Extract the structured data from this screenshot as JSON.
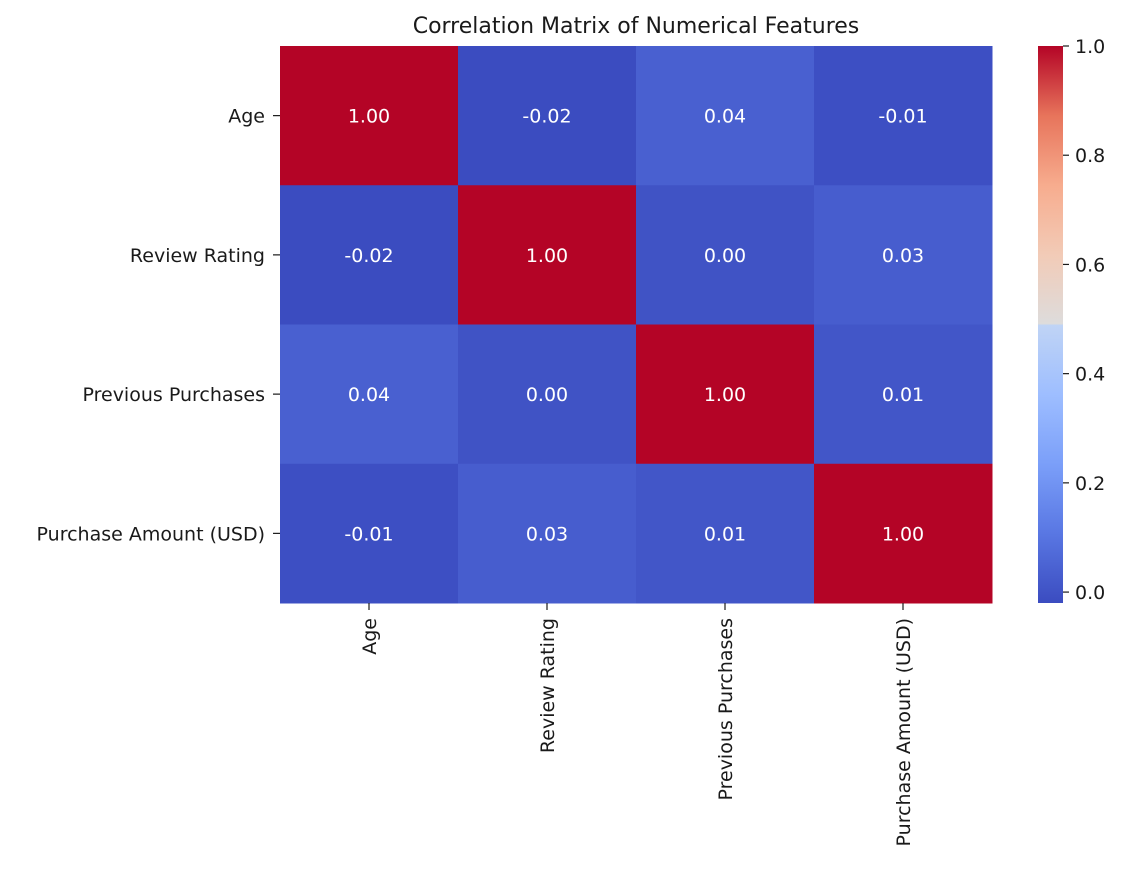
{
  "chart_data": {
    "type": "heatmap",
    "title": "Correlation Matrix of Numerical Features",
    "xlabel": "",
    "ylabel": "",
    "row_labels": [
      "Age",
      "Review Rating",
      "Previous Purchases",
      "Purchase Amount (USD)"
    ],
    "col_labels": [
      "Age",
      "Review Rating",
      "Previous Purchases",
      "Purchase Amount (USD)"
    ],
    "values": [
      [
        1.0,
        -0.02,
        0.04,
        -0.01
      ],
      [
        -0.02,
        1.0,
        0.0,
        0.03
      ],
      [
        0.04,
        0.0,
        1.0,
        0.01
      ],
      [
        -0.01,
        0.03,
        0.01,
        1.0
      ]
    ],
    "annotations": [
      [
        "1.00",
        "-0.02",
        "0.04",
        "-0.01"
      ],
      [
        "-0.02",
        "1.00",
        "0.00",
        "0.03"
      ],
      [
        "0.04",
        "0.00",
        "1.00",
        "0.01"
      ],
      [
        "-0.01",
        "0.03",
        "0.01",
        "1.00"
      ]
    ],
    "colormap": "coolwarm",
    "colorbar": {
      "range": [
        -0.02,
        1.0
      ],
      "ticks": [
        0.0,
        0.2,
        0.4,
        0.6,
        0.8,
        1.0
      ],
      "tick_labels": [
        "0.0",
        "0.2",
        "0.4",
        "0.6",
        "0.8",
        "1.0"
      ]
    },
    "annotation_color": "#ffffff"
  }
}
